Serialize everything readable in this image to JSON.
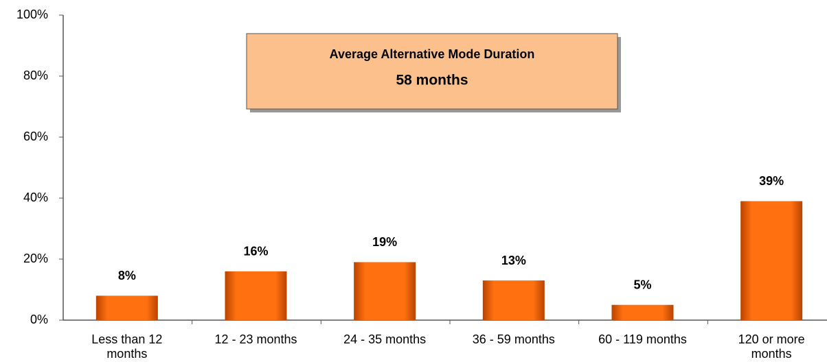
{
  "chart_data": {
    "type": "bar",
    "annotation": {
      "title": "Average Alternative Mode Duration",
      "value": "58 months"
    },
    "categories": [
      "Less than 12 months",
      "12 - 23 months",
      "24 - 35 months",
      "36 - 59 months",
      "60 - 119 months",
      "120 or more months"
    ],
    "values": [
      8,
      16,
      19,
      13,
      5,
      39
    ],
    "value_labels": [
      "8%",
      "16%",
      "19%",
      "13%",
      "5%",
      "39%"
    ],
    "color": "#ff6a00",
    "ylim": [
      0,
      100
    ],
    "yticks": [
      {
        "value": 0,
        "label": "0%"
      },
      {
        "value": 20,
        "label": "20%"
      },
      {
        "value": 40,
        "label": "40%"
      },
      {
        "value": 60,
        "label": "60%"
      },
      {
        "value": 80,
        "label": "80%"
      },
      {
        "value": 100,
        "label": "100%"
      }
    ],
    "grid": false
  }
}
